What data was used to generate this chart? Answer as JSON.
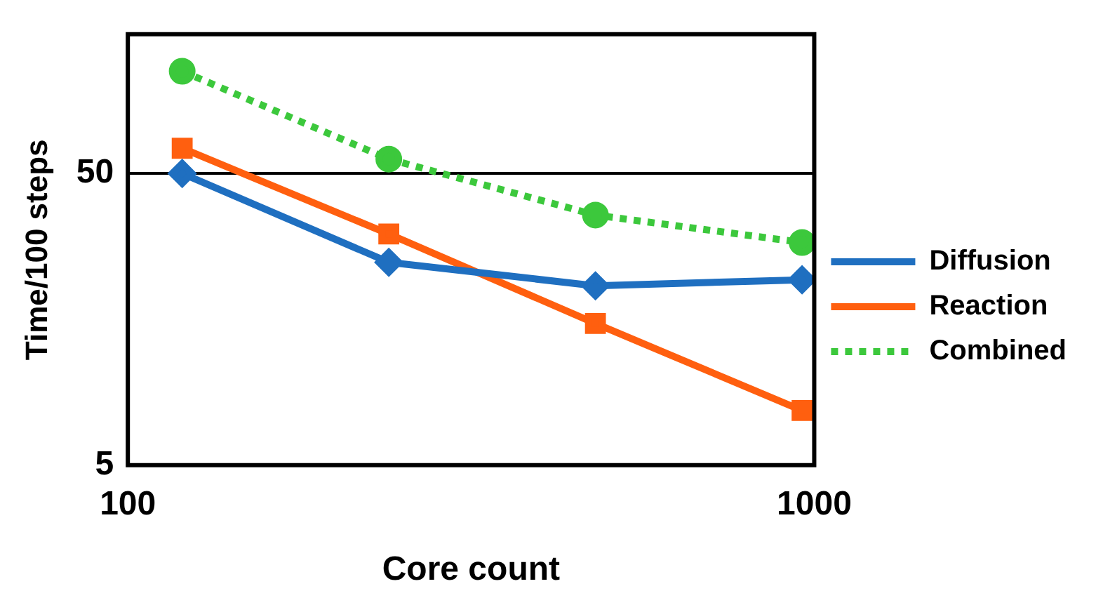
{
  "chart_data": {
    "type": "line",
    "xlabel": "Core count",
    "ylabel": "Time/100 steps",
    "log": "xy",
    "x": [
      120,
      240,
      480,
      960
    ],
    "xlim": [
      100,
      1000
    ],
    "xticks": [
      100,
      1000
    ],
    "ylim": [
      5,
      150
    ],
    "yticks": [
      5,
      50
    ],
    "grid": "y",
    "legend": "right",
    "series": [
      {
        "name": "Diffusion",
        "color": "#1f6fc0",
        "marker": "diamond",
        "line_style": "solid",
        "values": [
          50,
          24.8,
          20.6,
          21.6
        ]
      },
      {
        "name": "Reaction",
        "color": "#ff5f0f",
        "marker": "square",
        "line_style": "solid",
        "values": [
          61,
          31,
          15.3,
          7.7
        ]
      },
      {
        "name": "Combined",
        "color": "#3cc83c",
        "marker": "circle",
        "line_style": "dotted",
        "values": [
          112,
          56,
          36,
          29
        ]
      }
    ]
  }
}
